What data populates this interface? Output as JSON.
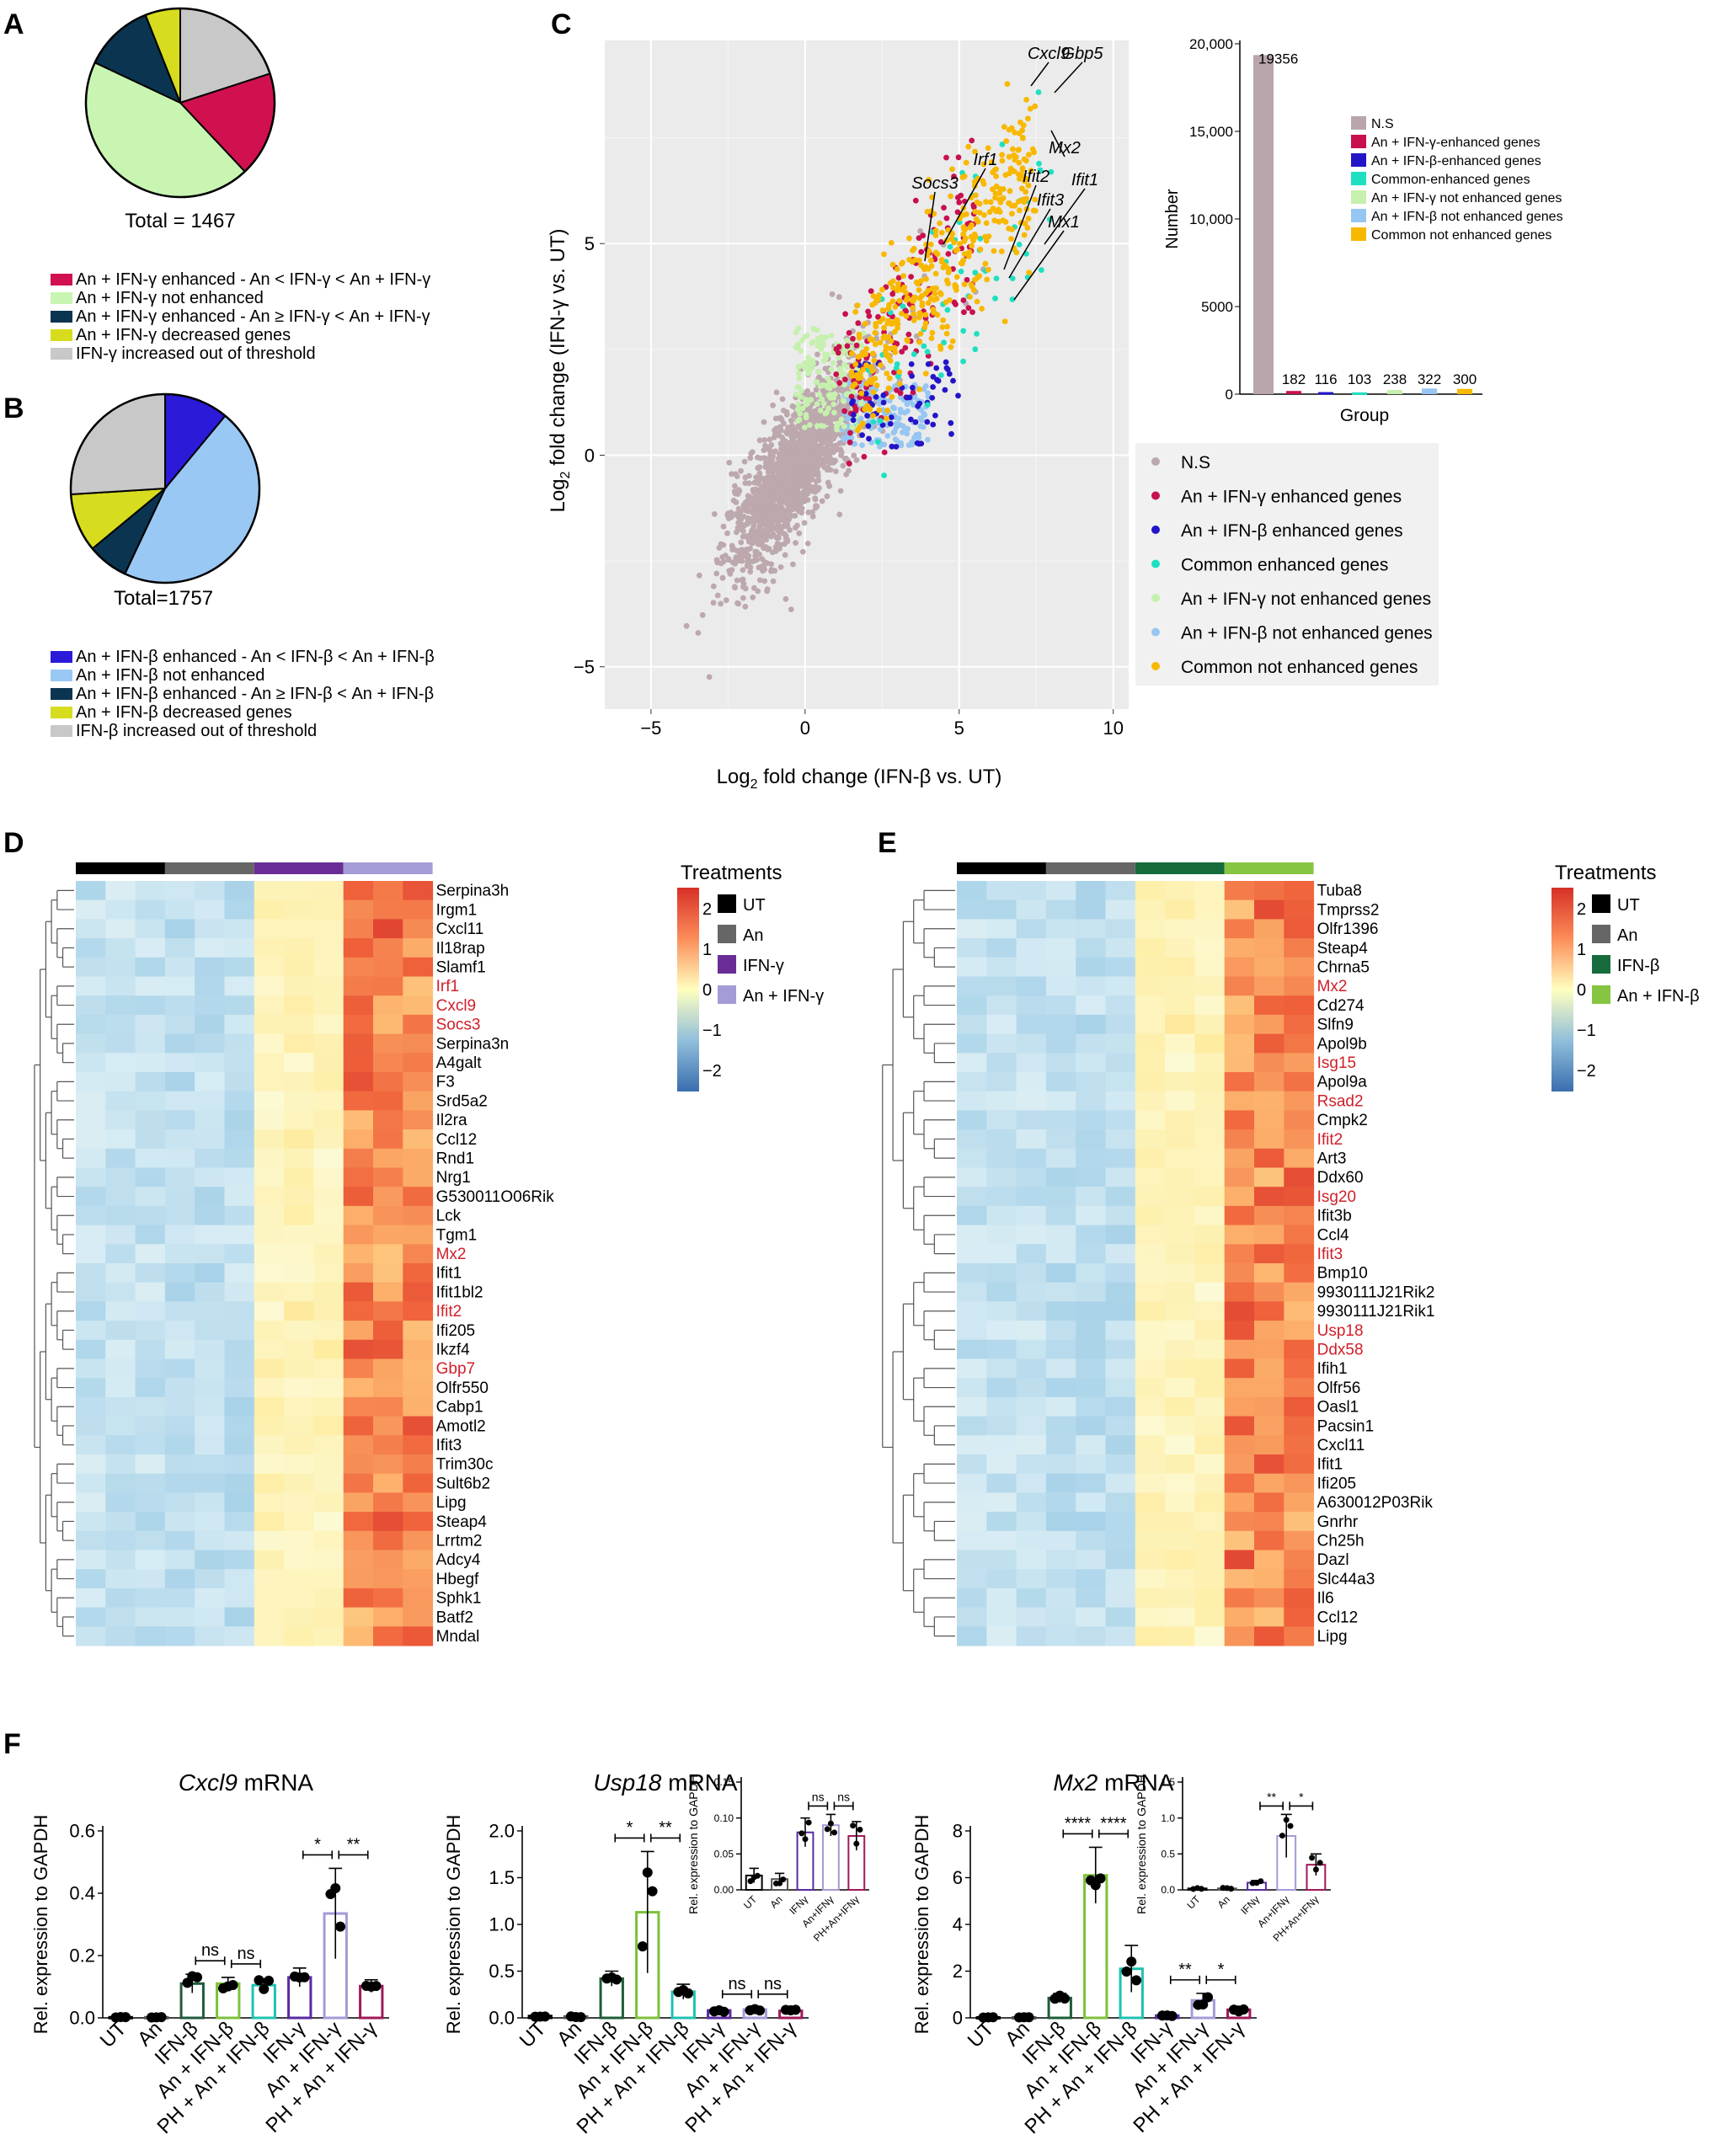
{
  "panel_labels": {
    "a": "A",
    "b": "B",
    "c": "C",
    "d": "D",
    "e": "E",
    "f": "F"
  },
  "pieA": {
    "total_label": "Total = 1467",
    "slices": [
      {
        "value": 20,
        "color": "#c8c8c8"
      },
      {
        "value": 18,
        "color": "#d1114f"
      },
      {
        "value": 44,
        "color": "#c9f5b2"
      },
      {
        "value": 12,
        "color": "#0b3450"
      },
      {
        "value": 6,
        "color": "#d7dc1e"
      }
    ],
    "legend": [
      {
        "label": "An + IFN-γ enhanced - An < IFN-γ < An + IFN-γ",
        "color": "#d1114f"
      },
      {
        "label": "An + IFN-γ not enhanced",
        "color": "#c9f5b2"
      },
      {
        "label": "An + IFN-γ enhanced - An ≥ IFN-γ < An + IFN-γ",
        "color": "#0b3450"
      },
      {
        "label": "An + IFN-γ decreased genes",
        "color": "#d7dc1e"
      },
      {
        "label": "IFN-γ increased out of threshold",
        "color": "#c8c8c8"
      }
    ]
  },
  "pieB": {
    "total_label": "Total=1757",
    "slices": [
      {
        "value": 11,
        "color": "#2b1bd8"
      },
      {
        "value": 46,
        "color": "#9ac8f4"
      },
      {
        "value": 7,
        "color": "#0b3450"
      },
      {
        "value": 10,
        "color": "#d7dc1e"
      },
      {
        "value": 26,
        "color": "#c8c8c8"
      }
    ],
    "legend": [
      {
        "label": "An + IFN-β enhanced - An < IFN-β < An + IFN-β",
        "color": "#2b1bd8"
      },
      {
        "label": "An + IFN-β not enhanced",
        "color": "#9ac8f4"
      },
      {
        "label": "An + IFN-β enhanced - An ≥ IFN-β < An + IFN-β",
        "color": "#0b3450"
      },
      {
        "label": "An + IFN-β decreased genes",
        "color": "#d7dc1e"
      },
      {
        "label": "IFN-β increased out of threshold",
        "color": "#c8c8c8"
      }
    ]
  },
  "scatter": {
    "xlabel_main": "Log",
    "xlabel_sub": "2",
    "xlabel_rest": " fold change (IFN-β vs. UT)",
    "ylabel_main": "Log",
    "ylabel_sub": "2",
    "ylabel_rest": " fold change (IFN-γ vs. UT)",
    "xticks": [
      "−5",
      "0",
      "5",
      "10"
    ],
    "yticks": [
      "−5",
      "0",
      "5"
    ],
    "gene_labels": [
      "Cxcl9",
      "Gbp5",
      "Mx2",
      "Ifit1",
      "Ifit2",
      "Ifit3",
      "Mx1",
      "Irf1",
      "Socs3"
    ],
    "legend": [
      {
        "label": "N.S",
        "color": "#bca8ad"
      },
      {
        "label": "An + IFN-γ enhanced genes",
        "color": "#c8104f"
      },
      {
        "label": "An + IFN-β enhanced genes",
        "color": "#2414c8"
      },
      {
        "label": "Common enhanced genes",
        "color": "#1ee0c0"
      },
      {
        "label": "An + IFN-γ not enhanced genes",
        "color": "#c6f0ae"
      },
      {
        "label": "An + IFN-β not enhanced genes",
        "color": "#96c6f2"
      },
      {
        "label": "Common not enhanced genes",
        "color": "#f8b800"
      }
    ]
  },
  "chart_data": [
    {
      "type": "pie",
      "panel": "A",
      "total": 1467,
      "slices": [
        20,
        18,
        44,
        12,
        6
      ]
    },
    {
      "type": "pie",
      "panel": "B",
      "total": 1757,
      "slices": [
        11,
        46,
        7,
        10,
        26
      ]
    },
    {
      "type": "bar",
      "panel": "C-inset",
      "categories": [
        "N.S",
        "An + IFN-γ-enhanced genes",
        "An + IFN-β-enhanced genes",
        "Common-enhanced genes",
        "An + IFN-γ not enhanced genes",
        "An + IFN-β not enhanced genes",
        "Common not enhanced genes"
      ],
      "bar_order": [
        "N.S",
        "An + IFN-γ not enhanced genes",
        "An + IFN-β not enhanced genes",
        "Common not enhanced genes",
        "An + IFN-γ-enhanced genes",
        "An + IFN-β-enhanced genes",
        "Common-enhanced genes"
      ],
      "values": [
        19356,
        238,
        322,
        300,
        182,
        116,
        103
      ],
      "value_labels": [
        "19356",
        "238",
        "322",
        "300",
        "182",
        "116",
        "103"
      ],
      "colors": [
        "#b9a6ab",
        "#c6f0ae",
        "#96c6f2",
        "#f8b800",
        "#c8104f",
        "#2414c8",
        "#1ee0c0"
      ],
      "xlabel": "Group",
      "ylabel": "Number",
      "yticks": [
        "0",
        "5000",
        "10,000",
        "15,000",
        "20,000"
      ],
      "ylim": [
        0,
        20000
      ]
    },
    {
      "type": "bar",
      "panel": "F1",
      "title": "Cxcl9 mRNA",
      "title_italic": "Cxcl9",
      "title_rest": " mRNA",
      "ylabel": "Rel. expression to GAPDH",
      "ylim": [
        0,
        0.6
      ],
      "yticks": [
        "0.0",
        "0.2",
        "0.4",
        "0.6"
      ],
      "categories": [
        "UT",
        "An",
        "IFN-β",
        "An + IFN-β",
        "PH + An + IFN-β",
        "IFN-γ",
        "An + IFN-γ",
        "PH + An + IFN-γ"
      ],
      "values": [
        0.002,
        0.002,
        0.11,
        0.11,
        0.105,
        0.13,
        0.335,
        0.102
      ],
      "errors": [
        0.001,
        0.001,
        0.03,
        0.02,
        0.02,
        0.03,
        0.145,
        0.02
      ],
      "colors": [
        "#000",
        "#555",
        "#1f5c3a",
        "#7dc13a",
        "#1ec2b0",
        "#5a2aa0",
        "#a69ad6",
        "#a0195a"
      ],
      "sig": [
        {
          "from": 2,
          "to": 3,
          "label": "ns"
        },
        {
          "from": 3,
          "to": 4,
          "label": "ns"
        },
        {
          "from": 5,
          "to": 6,
          "label": "*"
        },
        {
          "from": 6,
          "to": 7,
          "label": "**"
        }
      ]
    },
    {
      "type": "bar",
      "panel": "F2",
      "title": "Usp18 mRNA",
      "title_italic": "Usp18",
      "title_rest": " mRNA",
      "ylabel": "Rel. expression to GAPDH",
      "ylim": [
        0,
        2.0
      ],
      "yticks": [
        "0.0",
        "0.5",
        "1.0",
        "1.5",
        "2.0"
      ],
      "categories": [
        "UT",
        "An",
        "IFN-β",
        "An + IFN-β",
        "PH + An + IFN-β",
        "IFN-γ",
        "An + IFN-γ",
        "PH + An + IFN-γ"
      ],
      "values": [
        0.02,
        0.015,
        0.42,
        1.13,
        0.28,
        0.08,
        0.09,
        0.075
      ],
      "errors": [
        0.01,
        0.01,
        0.08,
        0.65,
        0.08,
        0.02,
        0.02,
        0.02
      ],
      "colors": [
        "#000",
        "#555",
        "#1f5c3a",
        "#7dc13a",
        "#1ec2b0",
        "#5a2aa0",
        "#a69ad6",
        "#a0195a"
      ],
      "sig": [
        {
          "from": 2,
          "to": 3,
          "label": "*"
        },
        {
          "from": 3,
          "to": 4,
          "label": "**"
        },
        {
          "from": 5,
          "to": 6,
          "label": "ns"
        },
        {
          "from": 6,
          "to": 7,
          "label": "ns"
        }
      ]
    },
    {
      "type": "bar",
      "panel": "F2-inset",
      "ylabel": "Rel. expression to GAPDH",
      "ylim": [
        0,
        0.15
      ],
      "yticks": [
        "0.00",
        "0.05",
        "0.10",
        "0.15"
      ],
      "categories": [
        "UT",
        "An",
        "IFNγ",
        "An+IFNγ",
        "PH+An+IFNγ"
      ],
      "values": [
        0.02,
        0.015,
        0.08,
        0.09,
        0.075
      ],
      "errors": [
        0.01,
        0.008,
        0.02,
        0.015,
        0.02
      ],
      "colors": [
        "#000",
        "#555",
        "#5a2aa0",
        "#a69ad6",
        "#a0195a"
      ],
      "sig": [
        {
          "from": 2,
          "to": 3,
          "label": "ns"
        },
        {
          "from": 3,
          "to": 4,
          "label": "ns"
        }
      ]
    },
    {
      "type": "bar",
      "panel": "F3",
      "title": "Mx2 mRNA",
      "title_italic": "Mx2",
      "title_rest": " mRNA",
      "ylabel": "Rel. expression to GAPDH",
      "ylim": [
        0,
        8
      ],
      "yticks": [
        "0",
        "2",
        "4",
        "6",
        "8"
      ],
      "categories": [
        "UT",
        "An",
        "IFN-β",
        "An + IFN-β",
        "PH + An + IFN-β",
        "IFN-γ",
        "An + IFN-γ",
        "PH + An + IFN-γ"
      ],
      "values": [
        0.02,
        0.02,
        0.85,
        6.1,
        2.1,
        0.1,
        0.75,
        0.35
      ],
      "errors": [
        0.01,
        0.01,
        0.2,
        1.2,
        1.0,
        0.03,
        0.3,
        0.15
      ],
      "colors": [
        "#000",
        "#555",
        "#1f5c3a",
        "#7dc13a",
        "#1ec2b0",
        "#5a2aa0",
        "#a69ad6",
        "#a0195a"
      ],
      "sig": [
        {
          "from": 2,
          "to": 3,
          "label": "****"
        },
        {
          "from": 3,
          "to": 4,
          "label": "****"
        },
        {
          "from": 5,
          "to": 6,
          "label": "**"
        },
        {
          "from": 6,
          "to": 7,
          "label": "*"
        }
      ]
    },
    {
      "type": "bar",
      "panel": "F3-inset",
      "ylabel": "Rel. expression to GAPDH",
      "ylim": [
        0,
        1.5
      ],
      "yticks": [
        "0.0",
        "0.5",
        "1.0",
        "1.5"
      ],
      "categories": [
        "UT",
        "An",
        "IFNγ",
        "An+IFNγ",
        "PH+An+IFNγ"
      ],
      "values": [
        0.02,
        0.02,
        0.1,
        0.75,
        0.35
      ],
      "errors": [
        0.01,
        0.01,
        0.03,
        0.3,
        0.15
      ],
      "colors": [
        "#000",
        "#555",
        "#5a2aa0",
        "#a69ad6",
        "#a0195a"
      ],
      "sig": [
        {
          "from": 2,
          "to": 3,
          "label": "**"
        },
        {
          "from": 3,
          "to": 4,
          "label": "*"
        }
      ]
    }
  ],
  "heatmapD": {
    "legend_title": "Treatments",
    "scale": [
      "2",
      "1",
      "0",
      "−1",
      "−2"
    ],
    "groups": [
      {
        "label": "UT",
        "color": "#000000"
      },
      {
        "label": "An",
        "color": "#666666"
      },
      {
        "label": "IFN-γ",
        "color": "#6a2d96"
      },
      {
        "label": "An + IFN-γ",
        "color": "#a49cd6"
      }
    ],
    "genes": [
      "Serpina3h",
      "Irgm1",
      "Cxcl11",
      "Il18rap",
      "Slamf1",
      "Irf1",
      "Cxcl9",
      "Socs3",
      "Serpina3n",
      "A4galt",
      "F3",
      "Srd5a2",
      "Il2ra",
      "Ccl12",
      "Rnd1",
      "Nrg1",
      "G530011O06Rik",
      "Lck",
      "Tgm1",
      "Mx2",
      "Ifit1",
      "Ifit1bl2",
      "Ifit2",
      "Ifi205",
      "Ikzf4",
      "Gbp7",
      "Olfr550",
      "Cabp1",
      "Amotl2",
      "Ifit3",
      "Trim30c",
      "Sult6b2",
      "Lipg",
      "Steap4",
      "Lrrtm2",
      "Adcy4",
      "Hbegf",
      "Sphk1",
      "Batf2",
      "Mndal"
    ],
    "highlight": [
      "Irf1",
      "Cxcl9",
      "Socs3",
      "Mx2",
      "Ifit2",
      "Gbp7"
    ]
  },
  "heatmapE": {
    "legend_title": "Treatments",
    "scale": [
      "2",
      "1",
      "0",
      "−1",
      "−2"
    ],
    "groups": [
      {
        "label": "UT",
        "color": "#000000"
      },
      {
        "label": "An",
        "color": "#666666"
      },
      {
        "label": "IFN-β",
        "color": "#176b3c"
      },
      {
        "label": "An + IFN-β",
        "color": "#86c542"
      }
    ],
    "genes": [
      "Tuba8",
      "Tmprss2",
      "Olfr1396",
      "Steap4",
      "Chrna5",
      "Mx2",
      "Cd274",
      "Slfn9",
      "Apol9b",
      "Isg15",
      "Apol9a",
      "Rsad2",
      "Cmpk2",
      "Ifit2",
      "Art3",
      "Ddx60",
      "Isg20",
      "Ifit3b",
      "Ccl4",
      "Ifit3",
      "Bmp10",
      "9930111J21Rik2",
      "9930111J21Rik1",
      "Usp18",
      "Ddx58",
      "Ifih1",
      "Olfr56",
      "Oasl1",
      "Pacsin1",
      "Cxcl11",
      "Ifit1",
      "Ifi205",
      "A630012P03Rik",
      "Gnrhr",
      "Ch25h",
      "Dazl",
      "Slc44a3",
      "Il6",
      "Ccl12",
      "Lipg"
    ],
    "highlight": [
      "Mx2",
      "Isg15",
      "Rsad2",
      "Ifit2",
      "Isg20",
      "Ifit3",
      "Usp18",
      "Ddx58"
    ]
  }
}
